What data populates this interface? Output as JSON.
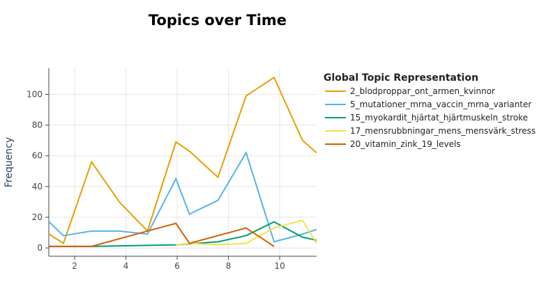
{
  "chart_data": {
    "type": "line",
    "title": "Topics over Time",
    "xlabel": "",
    "ylabel": "Frequency",
    "xlim": [
      0.99,
      11.44
    ],
    "ylim": [
      -5.4,
      117
    ],
    "xticks": [
      2,
      4,
      6,
      8,
      10
    ],
    "yticks": [
      0,
      20,
      40,
      60,
      80,
      100
    ],
    "grid": true,
    "legend": {
      "title": "Global Topic Representation",
      "placement": "right"
    },
    "series": [
      {
        "name": "2_blodproppar_ont_armen_kvinnor",
        "color": "#E69F00",
        "x": [
          1.0,
          1.56,
          2.66,
          3.74,
          4.84,
          5.95,
          6.48,
          7.59,
          8.69,
          9.78,
          10.89,
          11.44
        ],
        "y": [
          9,
          3,
          56,
          30,
          11,
          69,
          63,
          46,
          99,
          111,
          70,
          62
        ]
      },
      {
        "name": "5_mutationer_mrna_vaccin_mrna_varianter",
        "color": "#56B4E9",
        "x": [
          1.0,
          1.56,
          2.66,
          3.74,
          4.84,
          5.95,
          6.48,
          7.59,
          8.69,
          9.78,
          10.89,
          11.44
        ],
        "y": [
          17,
          8,
          11,
          11,
          9,
          45,
          22,
          31,
          62,
          4,
          9,
          12
        ]
      },
      {
        "name": "15_myokardit_hjärtat_hjärtmuskeln_stroke",
        "color": "#009E73",
        "x": [
          1.0,
          2.66,
          5.95,
          7.59,
          8.69,
          9.78,
          10.89,
          11.44
        ],
        "y": [
          1,
          1,
          2,
          4,
          8,
          17,
          7,
          5
        ]
      },
      {
        "name": "17_mensrubbningar_mens_mensvärk_stress",
        "color": "#F0E442",
        "x": [
          5.95,
          6.48,
          7.59,
          8.69,
          9.78,
          10.89,
          11.44
        ],
        "y": [
          2,
          3,
          2,
          3,
          13,
          18,
          3
        ]
      },
      {
        "name": "20_vitamin_zink_19_levels",
        "color": "#D55E00",
        "x": [
          1.0,
          2.66,
          4.84,
          5.95,
          6.48,
          8.69,
          9.78
        ],
        "y": [
          1,
          1,
          11,
          16,
          3,
          13,
          1
        ]
      }
    ]
  }
}
